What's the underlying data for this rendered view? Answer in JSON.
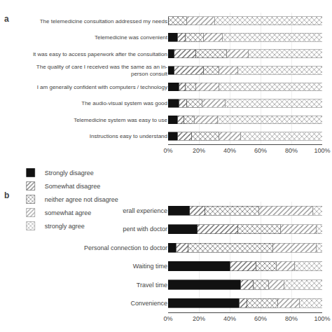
{
  "chart_data": [
    {
      "type": "bar",
      "title": "a",
      "orientation": "horizontal",
      "stacked": true,
      "grid": true,
      "categories": [
        "The telemedicine consultation addressed my needs",
        "Telemedicine was convenient",
        "It was easy to access paperwork after the consultation",
        "The quality of care I received was the same as an in-\nperson consult",
        "I am generally confident with computers / technology",
        "The audio-visual system was good",
        "Telemedicine system was easy to use",
        "Instructions easy to understand"
      ],
      "series": [
        {
          "name": "Strongly disagree",
          "color": "#111111",
          "values": [
            0,
            6,
            4,
            4,
            7,
            7,
            6,
            6
          ]
        },
        {
          "name": "Somewhat disagree",
          "color": "#c8c8c8",
          "values": [
            0,
            5,
            14,
            19,
            4,
            5,
            4,
            9
          ]
        },
        {
          "name": "neither agree not disagree",
          "color": "#888888",
          "values": [
            12,
            12,
            20,
            10,
            7,
            10,
            7,
            18
          ]
        },
        {
          "name": "somewhat agree",
          "color": "#d8d8d8",
          "values": [
            18,
            12,
            14,
            12,
            15,
            15,
            15,
            14
          ]
        },
        {
          "name": "strongly agree",
          "color": "#ffffff",
          "values": [
            70,
            65,
            48,
            55,
            67,
            63,
            68,
            53
          ]
        }
      ],
      "xlim": [
        0,
        100
      ],
      "xticks": [
        {
          "value": 0,
          "label": "0%"
        },
        {
          "value": 20,
          "label": "20%"
        },
        {
          "value": 40,
          "label": "40%"
        },
        {
          "value": 60,
          "label": "60%"
        },
        {
          "value": 80,
          "label": "80%"
        },
        {
          "value": 100,
          "label": "100%"
        }
      ]
    },
    {
      "type": "bar",
      "title": "b",
      "orientation": "horizontal",
      "stacked": true,
      "grid": true,
      "categories": [
        "Overall experience",
        "Time spent with doctor",
        "Personal connection to doctor",
        "Waiting time",
        "Travel time",
        "Convenience"
      ],
      "series": [
        {
          "name": "Strongly disagree",
          "color": "#111111",
          "values": [
            14,
            19,
            5,
            40,
            47,
            46
          ]
        },
        {
          "name": "Somewhat disagree",
          "color": "#c8c8c8",
          "values": [
            10,
            26,
            8,
            17,
            8,
            5
          ]
        },
        {
          "name": "neither agree not disagree",
          "color": "#888888",
          "values": [
            35,
            28,
            55,
            13,
            10,
            20
          ]
        },
        {
          "name": "somewhat agree",
          "color": "#d8d8d8",
          "values": [
            35,
            23,
            28,
            12,
            10,
            14
          ]
        },
        {
          "name": "strongly agree",
          "color": "#ffffff",
          "values": [
            6,
            4,
            4,
            18,
            25,
            15
          ]
        }
      ],
      "xlim": [
        0,
        100
      ],
      "xticks": [
        {
          "value": 0,
          "label": "0%"
        },
        {
          "value": 20,
          "label": "20%"
        },
        {
          "value": 40,
          "label": "40%"
        },
        {
          "value": 60,
          "label": "60%"
        },
        {
          "value": 80,
          "label": "80%"
        },
        {
          "value": 100,
          "label": "100%"
        }
      ]
    }
  ]
}
